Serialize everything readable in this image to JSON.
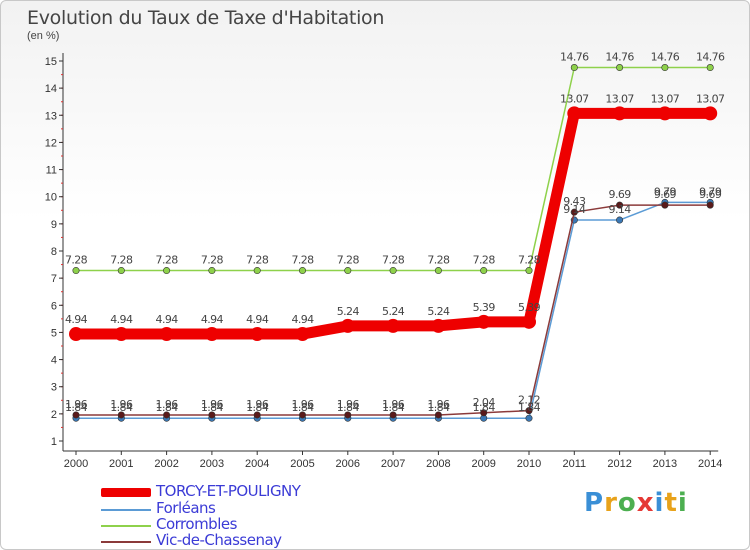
{
  "header": {
    "title": "Evolution du Taux de Taxe d'Habitation",
    "unit": "(en %)"
  },
  "logo": {
    "text": "Proxiti"
  },
  "chart_data": {
    "type": "line",
    "title": "Evolution du Taux de Taxe d'Habitation",
    "ylabel": "(en %)",
    "xlabel": "",
    "x": [
      "2000",
      "2001",
      "2002",
      "2003",
      "2004",
      "2005",
      "2006",
      "2007",
      "2008",
      "2009",
      "2010",
      "2011",
      "2012",
      "2013",
      "2014"
    ],
    "ylim": [
      1,
      15
    ],
    "yticks": [
      "1",
      "2",
      "3",
      "4",
      "5",
      "6",
      "7",
      "8",
      "9",
      "10",
      "11",
      "12",
      "13",
      "14",
      "15"
    ],
    "grid": false,
    "legend_position": "bottom-left",
    "series": [
      {
        "name": "Corrombles",
        "color": "#8ed14b",
        "marker": "#8ed14b",
        "values": [
          7.28,
          7.28,
          7.28,
          7.28,
          7.28,
          7.28,
          7.28,
          7.28,
          7.28,
          7.28,
          7.28,
          14.76,
          14.76,
          14.76,
          14.76
        ],
        "labels": [
          "7.28",
          "7.28",
          "7.28",
          "7.28",
          "7.28",
          "7.28",
          "7.28",
          "7.28",
          "7.28",
          "7.28",
          "7.28",
          "14.76",
          "14.76",
          "14.76",
          "14.76"
        ]
      },
      {
        "name": "Forléans",
        "color": "#5b9bd5",
        "marker": "#3a78b5",
        "values": [
          1.84,
          1.84,
          1.84,
          1.84,
          1.84,
          1.84,
          1.84,
          1.84,
          1.84,
          1.84,
          1.84,
          9.14,
          9.14,
          9.79,
          9.79
        ],
        "labels": [
          "1.84",
          "1.84",
          "1.84",
          "1.84",
          "1.84",
          "1.84",
          "1.84",
          "1.84",
          "1.84",
          "1.84",
          "1.84",
          "9.14",
          "9.14",
          "9.79",
          "9.79"
        ]
      },
      {
        "name": "Vic-de-Chassenay",
        "color": "#8b3a3a",
        "marker": "#5a1a1a",
        "values": [
          1.96,
          1.96,
          1.96,
          1.96,
          1.96,
          1.96,
          1.96,
          1.96,
          1.96,
          2.04,
          2.12,
          9.43,
          9.69,
          9.69,
          9.69
        ],
        "labels": [
          "1.96",
          "1.96",
          "1.96",
          "1.96",
          "1.96",
          "1.96",
          "1.96",
          "1.96",
          "1.96",
          "2.04",
          "2.12",
          "9.43",
          "9.69",
          "9.69",
          "9.69"
        ]
      },
      {
        "name": "TORCY-ET-POULIGNY",
        "color": "#ee0000",
        "marker": "#ee0000",
        "values": [
          4.94,
          4.94,
          4.94,
          4.94,
          4.94,
          4.94,
          5.24,
          5.24,
          5.24,
          5.39,
          5.39,
          13.07,
          13.07,
          13.07,
          13.07
        ],
        "labels": [
          "4.94",
          "4.94",
          "4.94",
          "4.94",
          "4.94",
          "4.94",
          "5.24",
          "5.24",
          "5.24",
          "5.39",
          "5.39",
          "13.07",
          "13.07",
          "13.07",
          "13.07"
        ]
      }
    ],
    "legend": [
      "TORCY-ET-POULIGNY",
      "Forléans",
      "Corrombles",
      "Vic-de-Chassenay"
    ]
  }
}
